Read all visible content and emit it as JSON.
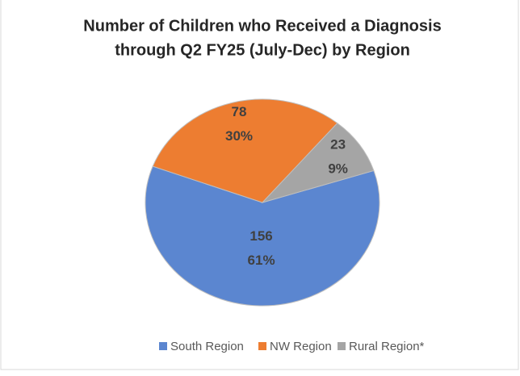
{
  "chart_data": {
    "type": "pie",
    "title": [
      "Number of Children who Received a Diagnosis",
      "through Q2 FY25 (July-Dec) by Region"
    ],
    "categories": [
      "South Region",
      "NW Region",
      "Rural Region*"
    ],
    "values": [
      156,
      78,
      23
    ],
    "percent_labels": [
      "61%",
      "30%",
      "9%"
    ],
    "colors": [
      "#5b86d0",
      "#ed7d31",
      "#a5a5a5"
    ],
    "legend": "bottom"
  }
}
